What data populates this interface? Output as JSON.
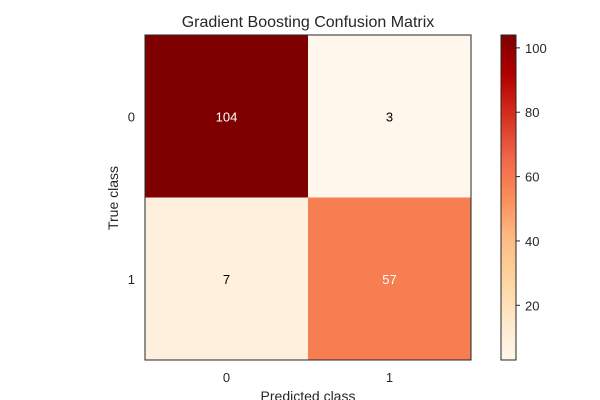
{
  "chart_data": {
    "type": "heatmap",
    "title": "Gradient Boosting Confusion Matrix",
    "xlabel": "Predicted class",
    "ylabel": "True class",
    "x_categories": [
      "0",
      "1"
    ],
    "y_categories": [
      "0",
      "1"
    ],
    "values": [
      [
        104,
        3
      ],
      [
        7,
        57
      ]
    ],
    "cell_labels": [
      [
        "104",
        "3"
      ],
      [
        "7",
        "57"
      ]
    ],
    "colorscale": "OrRd",
    "colorbar": {
      "range": [
        3,
        104
      ],
      "ticks": [
        20,
        40,
        60,
        80,
        100
      ],
      "tick_labels": [
        "20",
        "40",
        "60",
        "80",
        "100"
      ]
    },
    "colors": {
      "v104": "#7f0000",
      "v3": "#fff7ec",
      "v7": "#fef0dc",
      "v57": "#f67e51"
    }
  }
}
